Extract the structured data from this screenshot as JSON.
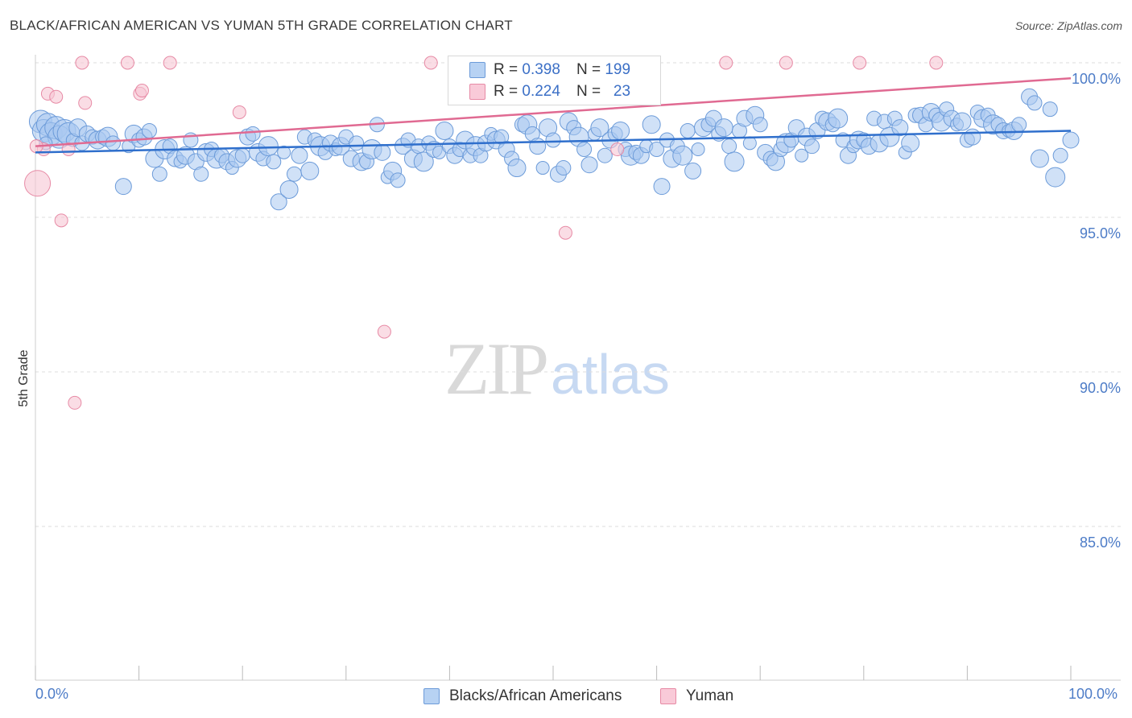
{
  "title": "BLACK/AFRICAN AMERICAN VS YUMAN 5TH GRADE CORRELATION CHART",
  "source": "Source: ZipAtlas.com",
  "watermark": {
    "zip": "ZIP",
    "atlas": "atlas"
  },
  "legend": {
    "series1": {
      "r_label": "R =",
      "r_value": "0.398",
      "n_label": "N =",
      "n_value": "199"
    },
    "series2": {
      "r_label": "R =",
      "r_value": "0.224",
      "n_label": "N =",
      "n_value": "23"
    }
  },
  "bottom_legend": {
    "series1": "Blacks/African Americans",
    "series2": "Yuman"
  },
  "colors": {
    "blue_fill": "#a9c8f0",
    "blue_stroke": "#6c9bd9",
    "blue_line": "#2f6fcc",
    "pink_fill": "#f7c6d4",
    "pink_stroke": "#e78aa5",
    "pink_line": "#e06a92",
    "grid": "#dddddd",
    "axis_text": "#4d7cc7"
  },
  "chart_data": {
    "type": "scatter",
    "title": "BLACK/AFRICAN AMERICAN VS YUMAN 5TH GRADE CORRELATION CHART",
    "xlabel": "",
    "ylabel": "5th Grade",
    "xlim": [
      0,
      100
    ],
    "ylim": [
      80,
      100.5
    ],
    "x_tick_labels": [
      "0.0%",
      "100.0%"
    ],
    "y_ticks": [
      {
        "value": 100,
        "label": "100.0%"
      },
      {
        "value": 95,
        "label": "95.0%"
      },
      {
        "value": 90,
        "label": "90.0%"
      },
      {
        "value": 85,
        "label": "85.0%"
      }
    ],
    "series": [
      {
        "name": "Blacks/African Americans",
        "r": 0.398,
        "n": 199,
        "trend": {
          "x": [
            0,
            100
          ],
          "y": [
            97.1,
            97.8
          ]
        },
        "points": [
          [
            0.5,
            98.1
          ],
          [
            0.8,
            97.8
          ],
          [
            1.2,
            98.0
          ],
          [
            1.5,
            97.7
          ],
          [
            2,
            97.9
          ],
          [
            2.3,
            97.6
          ],
          [
            2.8,
            97.8
          ],
          [
            3.2,
            97.7
          ],
          [
            3.6,
            97.5
          ],
          [
            4.1,
            97.9
          ],
          [
            4.5,
            97.4
          ],
          [
            5,
            97.7
          ],
          [
            5.5,
            97.6
          ],
          [
            6,
            97.5
          ],
          [
            6.5,
            97.6
          ],
          [
            7,
            97.6
          ],
          [
            7.5,
            97.4
          ],
          [
            8.5,
            96.0
          ],
          [
            9,
            97.3
          ],
          [
            9.5,
            97.7
          ],
          [
            10,
            97.5
          ],
          [
            10.5,
            97.6
          ],
          [
            11,
            97.8
          ],
          [
            11.5,
            96.9
          ],
          [
            12,
            96.4
          ],
          [
            12.5,
            97.2
          ],
          [
            13,
            97.3
          ],
          [
            13.5,
            96.9
          ],
          [
            14,
            96.8
          ],
          [
            14.5,
            97.0
          ],
          [
            15,
            97.5
          ],
          [
            15.5,
            96.8
          ],
          [
            16,
            96.4
          ],
          [
            16.5,
            97.1
          ],
          [
            17,
            97.2
          ],
          [
            17.5,
            96.9
          ],
          [
            18,
            97.0
          ],
          [
            18.5,
            96.8
          ],
          [
            19,
            96.6
          ],
          [
            19.5,
            96.9
          ],
          [
            20,
            97.0
          ],
          [
            20.5,
            97.6
          ],
          [
            21,
            97.7
          ],
          [
            21.5,
            97.1
          ],
          [
            22,
            96.9
          ],
          [
            22.5,
            97.3
          ],
          [
            23,
            96.8
          ],
          [
            23.5,
            95.5
          ],
          [
            24,
            97.1
          ],
          [
            24.5,
            95.9
          ],
          [
            25,
            96.4
          ],
          [
            25.5,
            97.0
          ],
          [
            26,
            97.6
          ],
          [
            26.5,
            96.5
          ],
          [
            27,
            97.5
          ],
          [
            27.5,
            97.3
          ],
          [
            28,
            97.1
          ],
          [
            28.5,
            97.4
          ],
          [
            29,
            97.2
          ],
          [
            29.5,
            97.3
          ],
          [
            30,
            97.6
          ],
          [
            30.5,
            96.9
          ],
          [
            31,
            97.4
          ],
          [
            31.5,
            96.8
          ],
          [
            32,
            96.8
          ],
          [
            32.5,
            97.2
          ],
          [
            33,
            98.0
          ],
          [
            33.5,
            97.1
          ],
          [
            34,
            96.3
          ],
          [
            34.5,
            96.5
          ],
          [
            35,
            96.2
          ],
          [
            35.5,
            97.3
          ],
          [
            36,
            97.5
          ],
          [
            36.5,
            96.9
          ],
          [
            37,
            97.3
          ],
          [
            37.5,
            96.8
          ],
          [
            38,
            97.4
          ],
          [
            38.5,
            97.2
          ],
          [
            39,
            97.1
          ],
          [
            39.5,
            97.8
          ],
          [
            40,
            97.3
          ],
          [
            40.5,
            97.0
          ],
          [
            41,
            97.2
          ],
          [
            41.5,
            97.5
          ],
          [
            42,
            97.0
          ],
          [
            42.5,
            97.3
          ],
          [
            43,
            97.0
          ],
          [
            43.5,
            97.4
          ],
          [
            44,
            97.7
          ],
          [
            44.5,
            97.5
          ],
          [
            45,
            97.6
          ],
          [
            45.5,
            97.2
          ],
          [
            46,
            96.9
          ],
          [
            46.5,
            96.6
          ],
          [
            47,
            98.0
          ],
          [
            47.5,
            98.0
          ],
          [
            48,
            97.7
          ],
          [
            48.5,
            97.3
          ],
          [
            49,
            96.6
          ],
          [
            49.5,
            97.9
          ],
          [
            50,
            97.5
          ],
          [
            50.5,
            96.4
          ],
          [
            51,
            96.6
          ],
          [
            51.5,
            98.1
          ],
          [
            52,
            97.9
          ],
          [
            52.5,
            97.6
          ],
          [
            53,
            97.2
          ],
          [
            53.5,
            96.7
          ],
          [
            54,
            97.7
          ],
          [
            54.5,
            97.9
          ],
          [
            55,
            97.0
          ],
          [
            55.5,
            97.5
          ],
          [
            56,
            97.7
          ],
          [
            56.5,
            97.8
          ],
          [
            57,
            97.2
          ],
          [
            57.5,
            97.0
          ],
          [
            58,
            97.1
          ],
          [
            58.5,
            97.0
          ],
          [
            59,
            97.3
          ],
          [
            59.5,
            98.0
          ],
          [
            60,
            97.2
          ],
          [
            60.5,
            96.0
          ],
          [
            61,
            97.5
          ],
          [
            61.5,
            96.9
          ],
          [
            62,
            97.3
          ],
          [
            62.5,
            97.0
          ],
          [
            63,
            97.8
          ],
          [
            63.5,
            96.5
          ],
          [
            64,
            97.2
          ],
          [
            64.5,
            97.9
          ],
          [
            65,
            98.0
          ],
          [
            65.5,
            98.2
          ],
          [
            66,
            97.7
          ],
          [
            66.5,
            97.9
          ],
          [
            67,
            97.3
          ],
          [
            67.5,
            96.8
          ],
          [
            68,
            97.8
          ],
          [
            68.5,
            98.2
          ],
          [
            69,
            97.4
          ],
          [
            69.5,
            98.3
          ],
          [
            70,
            98.0
          ],
          [
            70.5,
            97.1
          ],
          [
            71,
            96.9
          ],
          [
            71.5,
            96.8
          ],
          [
            72,
            97.2
          ],
          [
            72.5,
            97.4
          ],
          [
            73,
            97.5
          ],
          [
            73.5,
            97.9
          ],
          [
            74,
            97.0
          ],
          [
            74.5,
            97.6
          ],
          [
            75,
            97.3
          ],
          [
            75.5,
            97.8
          ],
          [
            76,
            98.2
          ],
          [
            76.5,
            98.1
          ],
          [
            77,
            98.0
          ],
          [
            77.5,
            98.2
          ],
          [
            78,
            97.5
          ],
          [
            78.5,
            97.0
          ],
          [
            79,
            97.3
          ],
          [
            79.5,
            97.5
          ],
          [
            80,
            97.5
          ],
          [
            80.5,
            97.3
          ],
          [
            81,
            98.2
          ],
          [
            81.5,
            97.4
          ],
          [
            82,
            98.1
          ],
          [
            82.5,
            97.6
          ],
          [
            83,
            98.2
          ],
          [
            83.5,
            97.9
          ],
          [
            84,
            97.1
          ],
          [
            84.5,
            97.4
          ],
          [
            85,
            98.3
          ],
          [
            85.5,
            98.3
          ],
          [
            86,
            98.0
          ],
          [
            86.5,
            98.4
          ],
          [
            87,
            98.3
          ],
          [
            87.5,
            98.1
          ],
          [
            88,
            98.5
          ],
          [
            88.5,
            98.2
          ],
          [
            89,
            98.0
          ],
          [
            89.5,
            98.1
          ],
          [
            90,
            97.5
          ],
          [
            90.5,
            97.6
          ],
          [
            91,
            98.4
          ],
          [
            91.5,
            98.2
          ],
          [
            92,
            98.3
          ],
          [
            92.5,
            98.0
          ],
          [
            93,
            98.0
          ],
          [
            93.5,
            97.8
          ],
          [
            94,
            97.8
          ],
          [
            94.5,
            97.8
          ],
          [
            95,
            98.0
          ],
          [
            96,
            98.9
          ],
          [
            96.5,
            98.7
          ],
          [
            97,
            96.9
          ],
          [
            98,
            98.5
          ],
          [
            98.5,
            96.3
          ],
          [
            99,
            97.0
          ],
          [
            100,
            97.5
          ],
          [
            1.0,
            97.4
          ]
        ]
      },
      {
        "name": "Yuman",
        "r": 0.224,
        "n": 23,
        "trend": {
          "x": [
            0,
            100
          ],
          "y": [
            97.3,
            99.5
          ]
        },
        "points": [
          [
            0.2,
            96.1
          ],
          [
            0.8,
            97.2
          ],
          [
            1.2,
            99.0
          ],
          [
            2,
            98.9
          ],
          [
            2.5,
            94.9
          ],
          [
            3.2,
            97.2
          ],
          [
            3.8,
            89.0
          ],
          [
            4.5,
            100.0
          ],
          [
            4.8,
            98.7
          ],
          [
            8.9,
            100.0
          ],
          [
            10.1,
            99.0
          ],
          [
            10.3,
            99.1
          ],
          [
            13,
            100.0
          ],
          [
            19.7,
            98.4
          ],
          [
            33.7,
            91.3
          ],
          [
            38.2,
            100.0
          ],
          [
            51.2,
            94.5
          ],
          [
            56.2,
            97.2
          ],
          [
            66.7,
            100.0
          ],
          [
            72.5,
            100.0
          ],
          [
            79.6,
            100.0
          ],
          [
            87,
            100.0
          ],
          [
            0.1,
            97.3
          ]
        ]
      }
    ]
  }
}
